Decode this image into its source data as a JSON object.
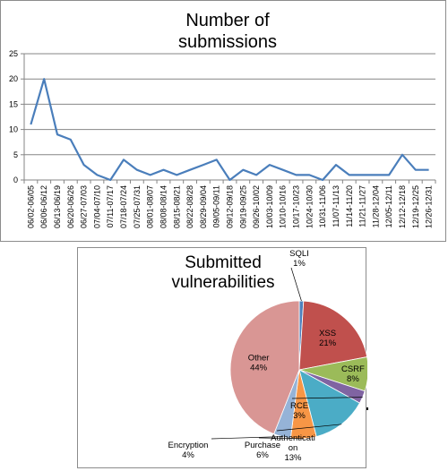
{
  "chart_data": [
    {
      "type": "line",
      "title": [
        "Number of",
        "submissions"
      ],
      "ylim": [
        0,
        25
      ],
      "yticks": [
        0,
        5,
        10,
        15,
        20,
        25
      ],
      "grid": "horizontal",
      "line_color": "#4a7ebb",
      "categories": [
        "06/02-06/05",
        "06/06-06/12",
        "06/13-06/19",
        "06/20-06/26",
        "06/27-07/03",
        "07/04-07/10",
        "07/11-07/17",
        "07/18-07/24",
        "07/25-07/31",
        "08/01-08/07",
        "08/08-08/14",
        "08/15-08/21",
        "08/22-08/28",
        "08/29-09/04",
        "09/05-09/11",
        "09/12-09/18",
        "09/19-09/25",
        "09/26-10/02",
        "10/03-10/09",
        "10/10-10/16",
        "10/17-10/23",
        "10/24-10/30",
        "10/31-11/06",
        "11/07-11/13",
        "11/14-11/20",
        "11/21-11/27",
        "11/28-12/04",
        "12/05-12/11",
        "12/12-12/18",
        "12/19-12/25",
        "12/26-12/31"
      ],
      "series": [
        {
          "values": [
            11,
            20,
            9,
            8,
            3,
            1,
            0,
            4,
            2,
            1,
            2,
            1,
            2,
            3,
            4,
            0,
            2,
            1,
            3,
            2,
            1,
            1,
            0,
            3,
            1,
            1,
            1,
            1,
            5,
            2,
            2
          ]
        }
      ]
    },
    {
      "type": "pie",
      "title": [
        "Submitted",
        "vulnerabilities"
      ],
      "slices": [
        {
          "name": "SQLI",
          "label": "SQLI",
          "pct": "1%",
          "value": 1,
          "color": "#4f81bd"
        },
        {
          "name": "XSS",
          "label": "XSS",
          "pct": "21%",
          "value": 21,
          "color": "#c0504d"
        },
        {
          "name": "CSRF",
          "label": "CSRF",
          "pct": "8%",
          "value": 8,
          "color": "#9bbb59"
        },
        {
          "name": "RCE",
          "label": "RCE",
          "pct": "3%",
          "value": 3,
          "color": "#8064a2"
        },
        {
          "name": "Authentication",
          "label": [
            "Authenticati",
            "on"
          ],
          "pct": "13%",
          "value": 13,
          "color": "#4bacc6"
        },
        {
          "name": "Purchase",
          "label": "Purchase",
          "pct": "6%",
          "value": 6,
          "color": "#f79646"
        },
        {
          "name": "Encryption",
          "label": "Encryption",
          "pct": "4%",
          "value": 4,
          "color": "#95b3d7"
        },
        {
          "name": "Other",
          "label": "Other",
          "pct": "44%",
          "value": 44,
          "color": "#d99694"
        }
      ]
    }
  ]
}
